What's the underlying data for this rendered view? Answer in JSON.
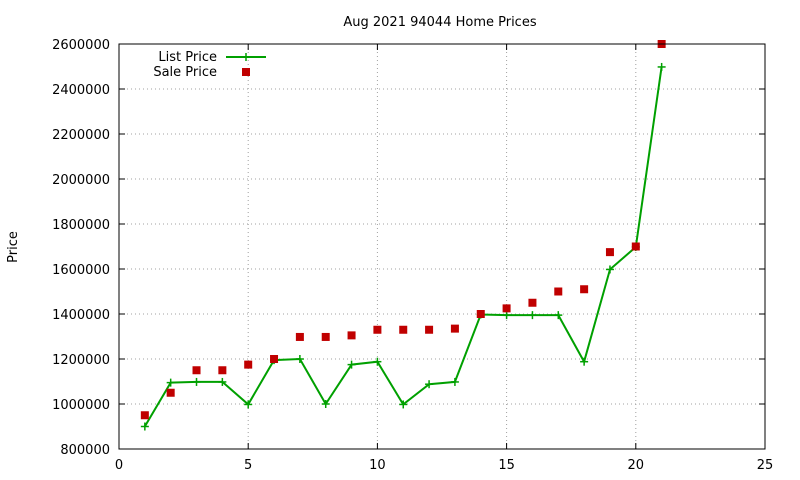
{
  "chart_data": {
    "type": "line",
    "title": "Aug 2021 94044 Home Prices",
    "xlabel": "",
    "ylabel": "Price",
    "xlim": [
      0,
      25
    ],
    "ylim": [
      800000,
      2600000
    ],
    "x_ticks": [
      0,
      5,
      10,
      15,
      20,
      25
    ],
    "y_ticks": [
      800000,
      1000000,
      1200000,
      1400000,
      1600000,
      1800000,
      2000000,
      2200000,
      2400000,
      2600000
    ],
    "grid": true,
    "legend_position": "top-left",
    "series": [
      {
        "name": "List Price",
        "style": "line+cross",
        "color": "#00a000",
        "x": [
          1,
          2,
          3,
          4,
          5,
          6,
          7,
          8,
          9,
          10,
          11,
          12,
          13,
          14,
          15,
          16,
          17,
          18,
          19,
          20,
          21
        ],
        "y": [
          900000,
          1095000,
          1098000,
          1098000,
          998000,
          1195000,
          1200000,
          1000000,
          1175000,
          1188000,
          998000,
          1088000,
          1098000,
          1398000,
          1395000,
          1395000,
          1395000,
          1188000,
          1598000,
          1698000,
          2498000
        ]
      },
      {
        "name": "Sale Price",
        "style": "points",
        "color": "#c00000",
        "x": [
          1,
          2,
          3,
          4,
          5,
          6,
          7,
          8,
          9,
          10,
          11,
          12,
          13,
          14,
          15,
          16,
          17,
          18,
          19,
          20,
          21
        ],
        "y": [
          950000,
          1050000,
          1150000,
          1150000,
          1175000,
          1200000,
          1298000,
          1298000,
          1305000,
          1330000,
          1330000,
          1330000,
          1335000,
          1400000,
          1425000,
          1450000,
          1500000,
          1510000,
          1675000,
          1700000,
          2600000
        ]
      }
    ]
  }
}
